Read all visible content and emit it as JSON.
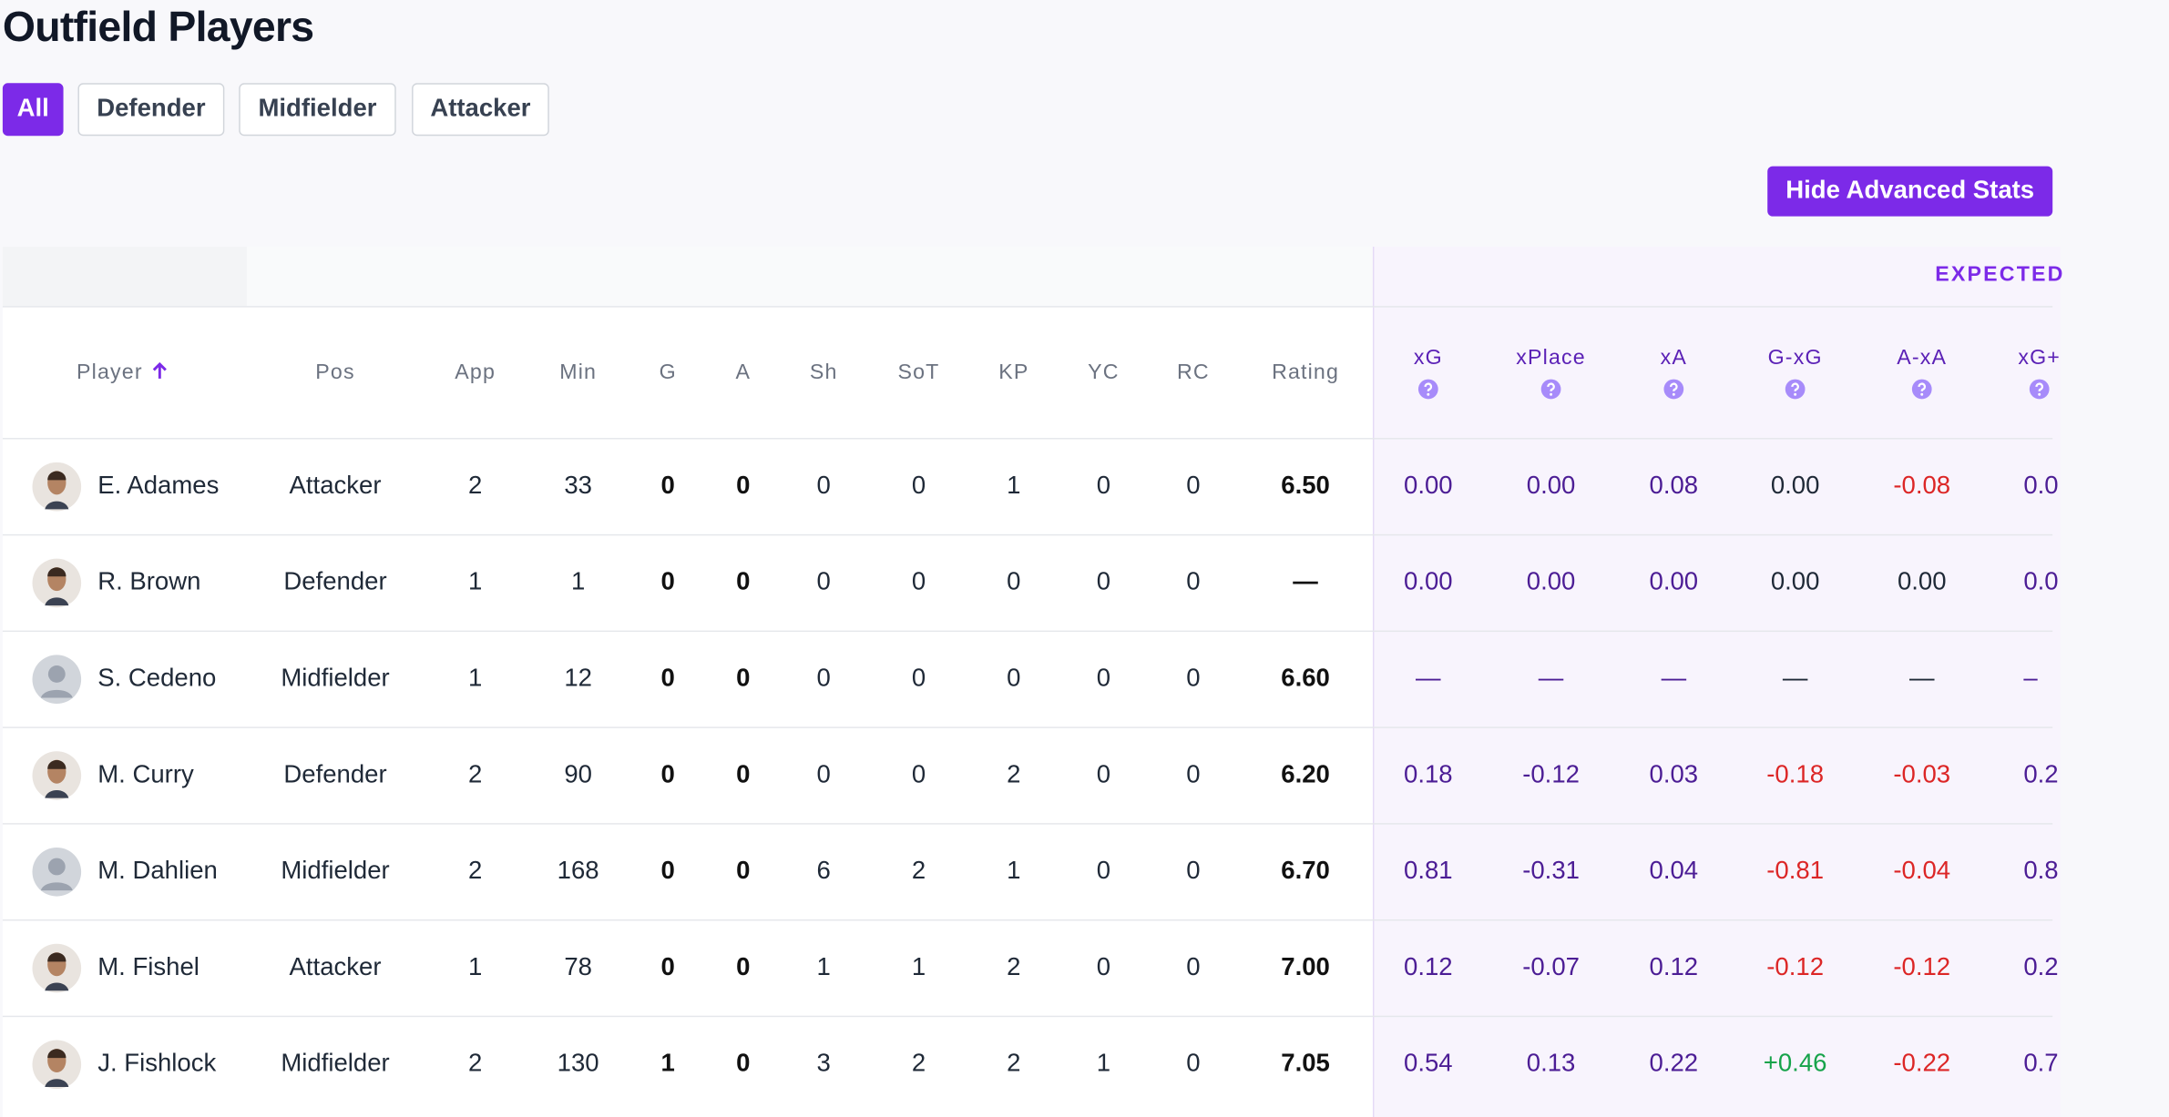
{
  "header": {
    "title": "Outfield Players"
  },
  "filters": [
    "All",
    "Defender",
    "Midfielder",
    "Attacker"
  ],
  "toggle_button": "Hide Advanced Stats",
  "table": {
    "group_header": "EXPECTED",
    "columns": [
      "Player",
      "Pos",
      "App",
      "Min",
      "G",
      "A",
      "Sh",
      "SoT",
      "KP",
      "YC",
      "RC",
      "Rating",
      "xG",
      "xPlace",
      "xA",
      "G-xG",
      "A-xA",
      "xG+"
    ],
    "rows": [
      [
        "E. Adames",
        "Attacker",
        "2",
        "33",
        "0",
        "0",
        "0",
        "0",
        "1",
        "0",
        "0",
        "6.50",
        "0.00",
        "0.00",
        "0.08",
        "0.00",
        "-0.08",
        "0.0"
      ],
      [
        "R. Brown",
        "Defender",
        "1",
        "1",
        "0",
        "0",
        "0",
        "0",
        "0",
        "0",
        "0",
        "—",
        "0.00",
        "0.00",
        "0.00",
        "0.00",
        "0.00",
        "0.0"
      ],
      [
        "S. Cedeno",
        "Midfielder",
        "1",
        "12",
        "0",
        "0",
        "0",
        "0",
        "0",
        "0",
        "0",
        "6.60",
        "—",
        "—",
        "—",
        "—",
        "—",
        "–"
      ],
      [
        "M. Curry",
        "Defender",
        "2",
        "90",
        "0",
        "0",
        "0",
        "0",
        "2",
        "0",
        "0",
        "6.20",
        "0.18",
        "-0.12",
        "0.03",
        "-0.18",
        "-0.03",
        "0.2"
      ],
      [
        "M. Dahlien",
        "Midfielder",
        "2",
        "168",
        "0",
        "0",
        "6",
        "2",
        "1",
        "0",
        "0",
        "6.70",
        "0.81",
        "-0.31",
        "0.04",
        "-0.81",
        "-0.04",
        "0.8"
      ],
      [
        "M. Fishel",
        "Attacker",
        "1",
        "78",
        "0",
        "0",
        "1",
        "1",
        "2",
        "0",
        "0",
        "7.00",
        "0.12",
        "-0.07",
        "0.12",
        "-0.12",
        "-0.12",
        "0.2"
      ],
      [
        "J. Fishlock",
        "Midfielder",
        "2",
        "130",
        "1",
        "0",
        "3",
        "2",
        "2",
        "1",
        "0",
        "7.05",
        "0.54",
        "0.13",
        "0.22",
        "+0.46",
        "-0.22",
        "0.7"
      ]
    ]
  }
}
